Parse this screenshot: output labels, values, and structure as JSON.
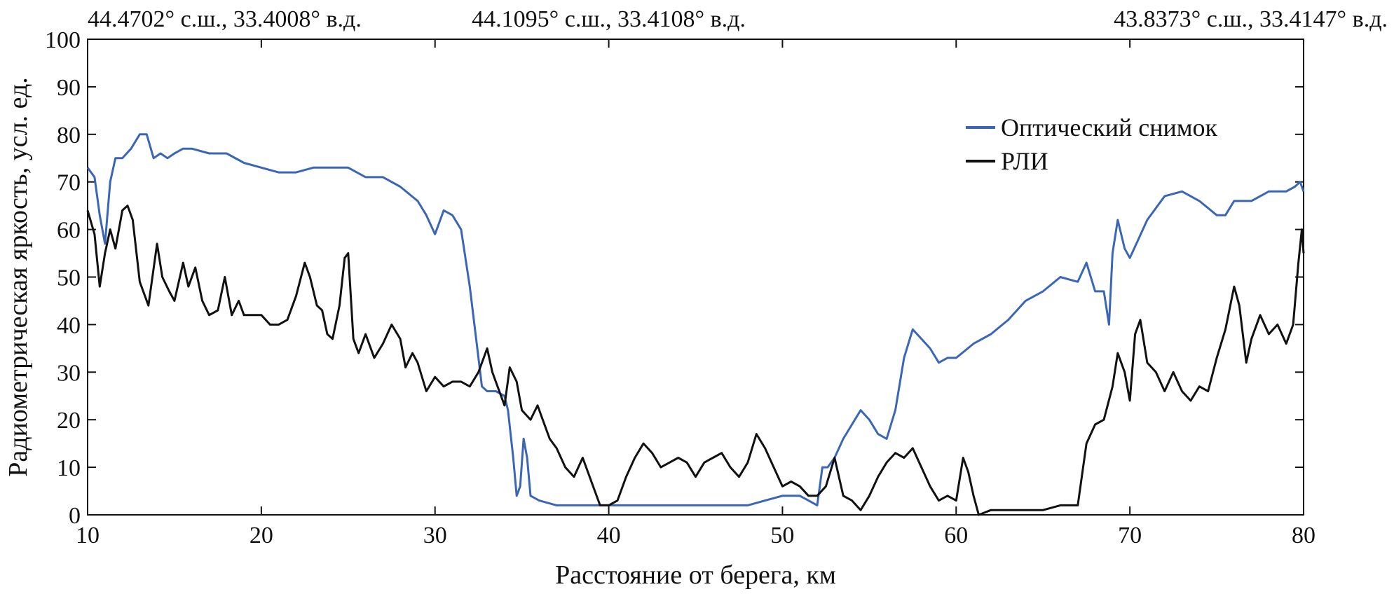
{
  "chart_data": {
    "type": "line",
    "title": "",
    "xlabel": "Расстояние от берега, км",
    "ylabel": "Радиометрическая яркость, усл. ед.",
    "xlim": [
      10,
      80
    ],
    "ylim": [
      0,
      100
    ],
    "xticks": [
      10,
      20,
      30,
      40,
      50,
      60,
      70,
      80
    ],
    "yticks": [
      0,
      10,
      20,
      30,
      40,
      50,
      60,
      70,
      80,
      90,
      100
    ],
    "grid": false,
    "legend_position": "top-right",
    "top_coordinates": [
      {
        "x": 10,
        "label": "44.4702° с.ш., 33.4008° в.д."
      },
      {
        "x": 40,
        "label": "44.1095° с.ш., 33.4108° в.д."
      },
      {
        "x": 80,
        "label": "43.8373° с.ш., 33.4147° в.д."
      }
    ],
    "series": [
      {
        "name": "Оптический снимок",
        "color": "#3b66b5",
        "points": [
          [
            10,
            73
          ],
          [
            10.4,
            71
          ],
          [
            10.7,
            63
          ],
          [
            11.0,
            57
          ],
          [
            11.3,
            70
          ],
          [
            11.6,
            75
          ],
          [
            12.0,
            75
          ],
          [
            12.5,
            77
          ],
          [
            13.0,
            80
          ],
          [
            13.4,
            80
          ],
          [
            13.8,
            75
          ],
          [
            14.2,
            76
          ],
          [
            14.6,
            75
          ],
          [
            15.0,
            76
          ],
          [
            15.5,
            77
          ],
          [
            16.0,
            77
          ],
          [
            17.0,
            76
          ],
          [
            18.0,
            76
          ],
          [
            19.0,
            74
          ],
          [
            20.0,
            73
          ],
          [
            21.0,
            72
          ],
          [
            22.0,
            72
          ],
          [
            23.0,
            73
          ],
          [
            24.0,
            73
          ],
          [
            25.0,
            73
          ],
          [
            26.0,
            71
          ],
          [
            27.0,
            71
          ],
          [
            28.0,
            69
          ],
          [
            29.0,
            66
          ],
          [
            29.5,
            63
          ],
          [
            30.0,
            59
          ],
          [
            30.5,
            64
          ],
          [
            31.0,
            63
          ],
          [
            31.5,
            60
          ],
          [
            32.0,
            48
          ],
          [
            32.4,
            36
          ],
          [
            32.7,
            27
          ],
          [
            33.0,
            26
          ],
          [
            33.5,
            26
          ],
          [
            34.0,
            25
          ],
          [
            34.2,
            22
          ],
          [
            34.5,
            12
          ],
          [
            34.7,
            4
          ],
          [
            34.9,
            6
          ],
          [
            35.1,
            16
          ],
          [
            35.3,
            12
          ],
          [
            35.5,
            4
          ],
          [
            36.0,
            3
          ],
          [
            37.0,
            2
          ],
          [
            38.0,
            2
          ],
          [
            39.0,
            2
          ],
          [
            40.0,
            2
          ],
          [
            42.0,
            2
          ],
          [
            44.0,
            2
          ],
          [
            46.0,
            2
          ],
          [
            48.0,
            2
          ],
          [
            49.0,
            3
          ],
          [
            50.0,
            4
          ],
          [
            51.0,
            4
          ],
          [
            51.5,
            3
          ],
          [
            52.0,
            2
          ],
          [
            52.3,
            10
          ],
          [
            52.6,
            10
          ],
          [
            53.0,
            12
          ],
          [
            53.5,
            16
          ],
          [
            54.0,
            19
          ],
          [
            54.5,
            22
          ],
          [
            55.0,
            20
          ],
          [
            55.5,
            17
          ],
          [
            56.0,
            16
          ],
          [
            56.5,
            22
          ],
          [
            57.0,
            33
          ],
          [
            57.5,
            39
          ],
          [
            58.0,
            37
          ],
          [
            58.5,
            35
          ],
          [
            59.0,
            32
          ],
          [
            59.5,
            33
          ],
          [
            60.0,
            33
          ],
          [
            61.0,
            36
          ],
          [
            62.0,
            38
          ],
          [
            63.0,
            41
          ],
          [
            64.0,
            45
          ],
          [
            65.0,
            47
          ],
          [
            66.0,
            50
          ],
          [
            67.0,
            49
          ],
          [
            67.5,
            53
          ],
          [
            68.0,
            47
          ],
          [
            68.5,
            47
          ],
          [
            68.8,
            40
          ],
          [
            69.0,
            55
          ],
          [
            69.3,
            62
          ],
          [
            69.7,
            56
          ],
          [
            70.0,
            54
          ],
          [
            70.5,
            58
          ],
          [
            71.0,
            62
          ],
          [
            72.0,
            67
          ],
          [
            73.0,
            68
          ],
          [
            74.0,
            66
          ],
          [
            75.0,
            63
          ],
          [
            75.5,
            63
          ],
          [
            76.0,
            66
          ],
          [
            77.0,
            66
          ],
          [
            78.0,
            68
          ],
          [
            79.0,
            68
          ],
          [
            79.5,
            69
          ],
          [
            79.8,
            70
          ],
          [
            80.0,
            68
          ]
        ]
      },
      {
        "name": "РЛИ",
        "color": "#111111",
        "points": [
          [
            10,
            64
          ],
          [
            10.4,
            59
          ],
          [
            10.7,
            48
          ],
          [
            11.0,
            55
          ],
          [
            11.3,
            60
          ],
          [
            11.6,
            56
          ],
          [
            12.0,
            64
          ],
          [
            12.3,
            65
          ],
          [
            12.6,
            62
          ],
          [
            13.0,
            49
          ],
          [
            13.5,
            44
          ],
          [
            14.0,
            57
          ],
          [
            14.3,
            50
          ],
          [
            14.7,
            47
          ],
          [
            15.0,
            45
          ],
          [
            15.5,
            53
          ],
          [
            15.8,
            48
          ],
          [
            16.2,
            52
          ],
          [
            16.6,
            45
          ],
          [
            17.0,
            42
          ],
          [
            17.5,
            43
          ],
          [
            17.9,
            50
          ],
          [
            18.3,
            42
          ],
          [
            18.7,
            45
          ],
          [
            19.0,
            42
          ],
          [
            19.5,
            42
          ],
          [
            20.0,
            42
          ],
          [
            20.5,
            40
          ],
          [
            21.0,
            40
          ],
          [
            21.5,
            41
          ],
          [
            22.0,
            46
          ],
          [
            22.5,
            53
          ],
          [
            22.8,
            50
          ],
          [
            23.2,
            44
          ],
          [
            23.5,
            43
          ],
          [
            23.8,
            38
          ],
          [
            24.1,
            37
          ],
          [
            24.5,
            44
          ],
          [
            24.8,
            54
          ],
          [
            25.0,
            55
          ],
          [
            25.3,
            37
          ],
          [
            25.6,
            34
          ],
          [
            26.0,
            38
          ],
          [
            26.5,
            33
          ],
          [
            27.0,
            36
          ],
          [
            27.5,
            40
          ],
          [
            28.0,
            37
          ],
          [
            28.3,
            31
          ],
          [
            28.7,
            34
          ],
          [
            29.0,
            32
          ],
          [
            29.5,
            26
          ],
          [
            30.0,
            29
          ],
          [
            30.5,
            27
          ],
          [
            31.0,
            28
          ],
          [
            31.5,
            28
          ],
          [
            32.0,
            27
          ],
          [
            32.5,
            30
          ],
          [
            33.0,
            35
          ],
          [
            33.3,
            30
          ],
          [
            33.7,
            26
          ],
          [
            34.0,
            23
          ],
          [
            34.3,
            31
          ],
          [
            34.7,
            28
          ],
          [
            35.0,
            22
          ],
          [
            35.5,
            20
          ],
          [
            35.9,
            23
          ],
          [
            36.2,
            20
          ],
          [
            36.6,
            16
          ],
          [
            37.0,
            14
          ],
          [
            37.5,
            10
          ],
          [
            38.0,
            8
          ],
          [
            38.5,
            12
          ],
          [
            39.0,
            7
          ],
          [
            39.5,
            2
          ],
          [
            40.0,
            2
          ],
          [
            40.5,
            3
          ],
          [
            41.0,
            8
          ],
          [
            41.5,
            12
          ],
          [
            42.0,
            15
          ],
          [
            42.5,
            13
          ],
          [
            43.0,
            10
          ],
          [
            43.5,
            11
          ],
          [
            44.0,
            12
          ],
          [
            44.5,
            11
          ],
          [
            45.0,
            8
          ],
          [
            45.5,
            11
          ],
          [
            46.0,
            12
          ],
          [
            46.5,
            13
          ],
          [
            47.0,
            10
          ],
          [
            47.5,
            8
          ],
          [
            48.0,
            11
          ],
          [
            48.5,
            17
          ],
          [
            49.0,
            14
          ],
          [
            49.5,
            10
          ],
          [
            50.0,
            6
          ],
          [
            50.5,
            7
          ],
          [
            51.0,
            6
          ],
          [
            51.5,
            4
          ],
          [
            52.0,
            4
          ],
          [
            52.5,
            6
          ],
          [
            53.0,
            12
          ],
          [
            53.5,
            4
          ],
          [
            54.0,
            3
          ],
          [
            54.5,
            1
          ],
          [
            55.0,
            4
          ],
          [
            55.5,
            8
          ],
          [
            56.0,
            11
          ],
          [
            56.5,
            13
          ],
          [
            57.0,
            12
          ],
          [
            57.5,
            14
          ],
          [
            58.0,
            10
          ],
          [
            58.5,
            6
          ],
          [
            59.0,
            3
          ],
          [
            59.5,
            4
          ],
          [
            60.0,
            3
          ],
          [
            60.4,
            12
          ],
          [
            60.7,
            9
          ],
          [
            61.0,
            4
          ],
          [
            61.3,
            0
          ],
          [
            62.0,
            1
          ],
          [
            63.0,
            1
          ],
          [
            64.0,
            1
          ],
          [
            65.0,
            1
          ],
          [
            66.0,
            2
          ],
          [
            67.0,
            2
          ],
          [
            67.5,
            15
          ],
          [
            68.0,
            19
          ],
          [
            68.5,
            20
          ],
          [
            69.0,
            27
          ],
          [
            69.3,
            34
          ],
          [
            69.7,
            30
          ],
          [
            70.0,
            24
          ],
          [
            70.3,
            38
          ],
          [
            70.6,
            41
          ],
          [
            71.0,
            32
          ],
          [
            71.5,
            30
          ],
          [
            72.0,
            26
          ],
          [
            72.5,
            30
          ],
          [
            73.0,
            26
          ],
          [
            73.5,
            24
          ],
          [
            74.0,
            27
          ],
          [
            74.5,
            26
          ],
          [
            75.0,
            33
          ],
          [
            75.5,
            39
          ],
          [
            76.0,
            48
          ],
          [
            76.3,
            44
          ],
          [
            76.7,
            32
          ],
          [
            77.0,
            37
          ],
          [
            77.5,
            42
          ],
          [
            78.0,
            38
          ],
          [
            78.5,
            40
          ],
          [
            79.0,
            36
          ],
          [
            79.4,
            40
          ],
          [
            79.7,
            53
          ],
          [
            79.9,
            60
          ],
          [
            80.0,
            55
          ]
        ]
      }
    ]
  }
}
